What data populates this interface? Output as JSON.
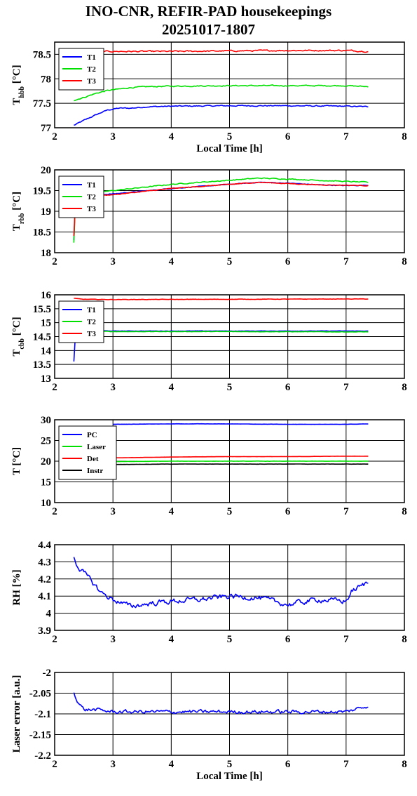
{
  "figure": {
    "title_line1": "INO-CNR, REFIR-PAD housekeepings",
    "title_line2": "20251017-1807"
  },
  "chart_data": [
    {
      "type": "line",
      "ylabel_main": "T",
      "ylabel_sub": "hbb",
      "ylabel_unit": " [°C]",
      "xlabel": "Local Time [h]",
      "xlim": [
        2,
        8
      ],
      "ylim": [
        77,
        78.75
      ],
      "xticks": [
        2,
        3,
        4,
        5,
        6,
        7,
        8
      ],
      "yticks": [
        77,
        77.5,
        78,
        78.5
      ],
      "ytick_labels": [
        "77",
        "77.5",
        "78",
        "78.5"
      ],
      "grid": true,
      "legend": "top-left",
      "series": [
        {
          "name": "T1",
          "color": "#0000ff",
          "noise": 0.02,
          "x": [
            2.33,
            2.5,
            2.7,
            2.9,
            3.1,
            3.3,
            3.6,
            4.0,
            5.0,
            6.0,
            7.0,
            7.38
          ],
          "y": [
            77.05,
            77.15,
            77.26,
            77.36,
            77.4,
            77.4,
            77.43,
            77.44,
            77.45,
            77.45,
            77.44,
            77.43
          ]
        },
        {
          "name": "T2",
          "color": "#00e000",
          "noise": 0.02,
          "x": [
            2.33,
            2.5,
            2.7,
            2.9,
            3.1,
            3.3,
            3.6,
            4.0,
            5.0,
            6.0,
            7.0,
            7.38
          ],
          "y": [
            77.56,
            77.62,
            77.7,
            77.76,
            77.79,
            77.82,
            77.84,
            77.85,
            77.86,
            77.86,
            77.86,
            77.84
          ]
        },
        {
          "name": "T3",
          "color": "#ff0000",
          "noise": 0.025,
          "x": [
            2.33,
            2.6,
            3.0,
            4.0,
            5.0,
            6.0,
            7.0,
            7.38
          ],
          "y": [
            78.54,
            78.56,
            78.56,
            78.56,
            78.57,
            78.58,
            78.58,
            78.56
          ]
        }
      ]
    },
    {
      "type": "line",
      "ylabel_main": "T",
      "ylabel_sub": "rbb",
      "ylabel_unit": " [°C]",
      "xlabel": "",
      "xlim": [
        2,
        8
      ],
      "ylim": [
        18,
        20
      ],
      "xticks": [
        2,
        3,
        4,
        5,
        6,
        7,
        8
      ],
      "yticks": [
        18,
        18.5,
        19,
        19.5,
        20
      ],
      "ytick_labels": [
        "18",
        "18.5",
        "19",
        "19.5",
        "20"
      ],
      "grid": true,
      "legend": "top-left",
      "series": [
        {
          "name": "T1",
          "color": "#0000ff",
          "noise": 0.015,
          "x": [
            2.33,
            2.36,
            2.5,
            3.0,
            4.0,
            5.0,
            5.5,
            6.0,
            6.5,
            7.0,
            7.38
          ],
          "y": [
            18.3,
            19.3,
            19.38,
            19.42,
            19.55,
            19.65,
            19.7,
            19.68,
            19.64,
            19.62,
            19.63
          ]
        },
        {
          "name": "T2",
          "color": "#00e000",
          "noise": 0.02,
          "x": [
            2.33,
            2.36,
            2.5,
            3.0,
            4.0,
            5.0,
            5.5,
            6.0,
            6.5,
            7.0,
            7.38
          ],
          "y": [
            18.25,
            19.35,
            19.42,
            19.5,
            19.65,
            19.75,
            19.8,
            19.78,
            19.75,
            19.72,
            19.7
          ]
        },
        {
          "name": "T3",
          "color": "#ff0000",
          "noise": 0.015,
          "x": [
            2.33,
            2.36,
            2.5,
            3.0,
            4.0,
            5.0,
            5.5,
            6.0,
            6.5,
            7.0,
            7.38
          ],
          "y": [
            18.4,
            19.32,
            19.36,
            19.4,
            19.55,
            19.65,
            19.7,
            19.67,
            19.64,
            19.63,
            19.62
          ]
        }
      ]
    },
    {
      "type": "line",
      "ylabel_main": "T",
      "ylabel_sub": "cbb",
      "ylabel_unit": " [°C]",
      "xlabel": "",
      "xlim": [
        2,
        8
      ],
      "ylim": [
        13,
        16
      ],
      "xticks": [
        2,
        3,
        4,
        5,
        6,
        7,
        8
      ],
      "yticks": [
        13,
        13.5,
        14,
        14.5,
        15,
        15.5,
        16
      ],
      "ytick_labels": [
        "13",
        "13.5",
        "14",
        "14.5",
        "15",
        "15.5",
        "16"
      ],
      "grid": true,
      "legend": "top-left",
      "series": [
        {
          "name": "T1",
          "color": "#0000ff",
          "noise": 0.012,
          "x": [
            2.33,
            2.36,
            2.5,
            3.0,
            5.0,
            7.0,
            7.38
          ],
          "y": [
            13.6,
            14.7,
            14.72,
            14.7,
            14.7,
            14.7,
            14.7
          ]
        },
        {
          "name": "T2",
          "color": "#00e000",
          "noise": 0.012,
          "x": [
            2.33,
            2.36,
            2.5,
            3.0,
            5.0,
            7.0,
            7.38
          ],
          "y": [
            14.4,
            14.68,
            14.7,
            14.68,
            14.68,
            14.67,
            14.67
          ]
        },
        {
          "name": "T3",
          "color": "#ff0000",
          "noise": 0.012,
          "x": [
            2.33,
            2.5,
            3.0,
            5.0,
            7.0,
            7.38
          ],
          "y": [
            15.87,
            15.84,
            15.83,
            15.84,
            15.85,
            15.85
          ]
        }
      ]
    },
    {
      "type": "line",
      "ylabel_main": "T [°C]",
      "ylabel_sub": "",
      "ylabel_unit": "",
      "xlabel": "",
      "xlim": [
        2,
        8
      ],
      "ylim": [
        10,
        30
      ],
      "xticks": [
        2,
        3,
        4,
        5,
        6,
        7,
        8
      ],
      "yticks": [
        10,
        15,
        20,
        25,
        30
      ],
      "ytick_labels": [
        "10",
        "15",
        "20",
        "25",
        "30"
      ],
      "grid": true,
      "legend": "top-left",
      "series": [
        {
          "name": "PC",
          "color": "#0000ff",
          "noise": 0.04,
          "x": [
            3.0,
            4.0,
            5.0,
            6.0,
            7.0,
            7.38
          ],
          "y": [
            28.9,
            29.0,
            29.0,
            28.9,
            28.9,
            29.0
          ]
        },
        {
          "name": "Laser",
          "color": "#00e000",
          "noise": 0.05,
          "x": [
            3.0,
            4.0,
            5.0,
            6.0,
            7.0,
            7.38
          ],
          "y": [
            19.9,
            20.0,
            20.0,
            20.0,
            20.0,
            20.0
          ]
        },
        {
          "name": "Det",
          "color": "#ff0000",
          "noise": 0.03,
          "x": [
            3.0,
            4.0,
            5.0,
            6.0,
            7.0,
            7.38
          ],
          "y": [
            20.8,
            21.0,
            21.1,
            21.1,
            21.2,
            21.2
          ]
        },
        {
          "name": "Instr",
          "color": "#000000",
          "noise": 0.04,
          "x": [
            3.0,
            4.0,
            5.0,
            6.0,
            7.0,
            7.38
          ],
          "y": [
            19.2,
            19.3,
            19.3,
            19.3,
            19.3,
            19.3
          ]
        }
      ]
    },
    {
      "type": "line",
      "ylabel_main": "RH [%]",
      "ylabel_sub": "",
      "ylabel_unit": "",
      "xlabel": "",
      "xlim": [
        2,
        8
      ],
      "ylim": [
        3.9,
        4.4
      ],
      "xticks": [
        2,
        3,
        4,
        5,
        6,
        7,
        8
      ],
      "yticks": [
        3.9,
        4.0,
        4.1,
        4.2,
        4.3,
        4.4
      ],
      "ytick_labels": [
        "3.9",
        "4",
        "4.1",
        "4.2",
        "4.3",
        "4.4"
      ],
      "grid": true,
      "legend": "none",
      "series": [
        {
          "name": "",
          "color": "#0000ff",
          "noise": 0.028,
          "x": [
            2.33,
            2.4,
            2.6,
            2.8,
            3.0,
            3.3,
            3.7,
            4.0,
            4.5,
            5.0,
            5.5,
            6.0,
            6.5,
            7.0,
            7.1,
            7.38
          ],
          "y": [
            4.33,
            4.27,
            4.2,
            4.12,
            4.08,
            4.04,
            4.06,
            4.07,
            4.08,
            4.1,
            4.09,
            4.05,
            4.08,
            4.07,
            4.13,
            4.18
          ]
        }
      ]
    },
    {
      "type": "line",
      "ylabel_main": "Laser error [a.u.]",
      "ylabel_sub": "",
      "ylabel_unit": "",
      "xlabel": "Local Time [h]",
      "xlim": [
        2,
        8
      ],
      "ylim": [
        -2.2,
        -2.0
      ],
      "xticks": [
        2,
        3,
        4,
        5,
        6,
        7,
        8
      ],
      "yticks": [
        -2.2,
        -2.15,
        -2.1,
        -2.05,
        -2.0
      ],
      "ytick_labels": [
        "-2.2",
        "-2.15",
        "-2.1",
        "-2.05",
        "-2"
      ],
      "grid": true,
      "legend": "none",
      "series": [
        {
          "name": "",
          "color": "#0000ff",
          "noise": 0.008,
          "x": [
            2.33,
            2.4,
            2.5,
            2.7,
            3.0,
            4.0,
            5.0,
            6.0,
            7.0,
            7.38
          ],
          "y": [
            -2.05,
            -2.07,
            -2.09,
            -2.09,
            -2.095,
            -2.095,
            -2.095,
            -2.095,
            -2.095,
            -2.08
          ]
        }
      ]
    }
  ]
}
